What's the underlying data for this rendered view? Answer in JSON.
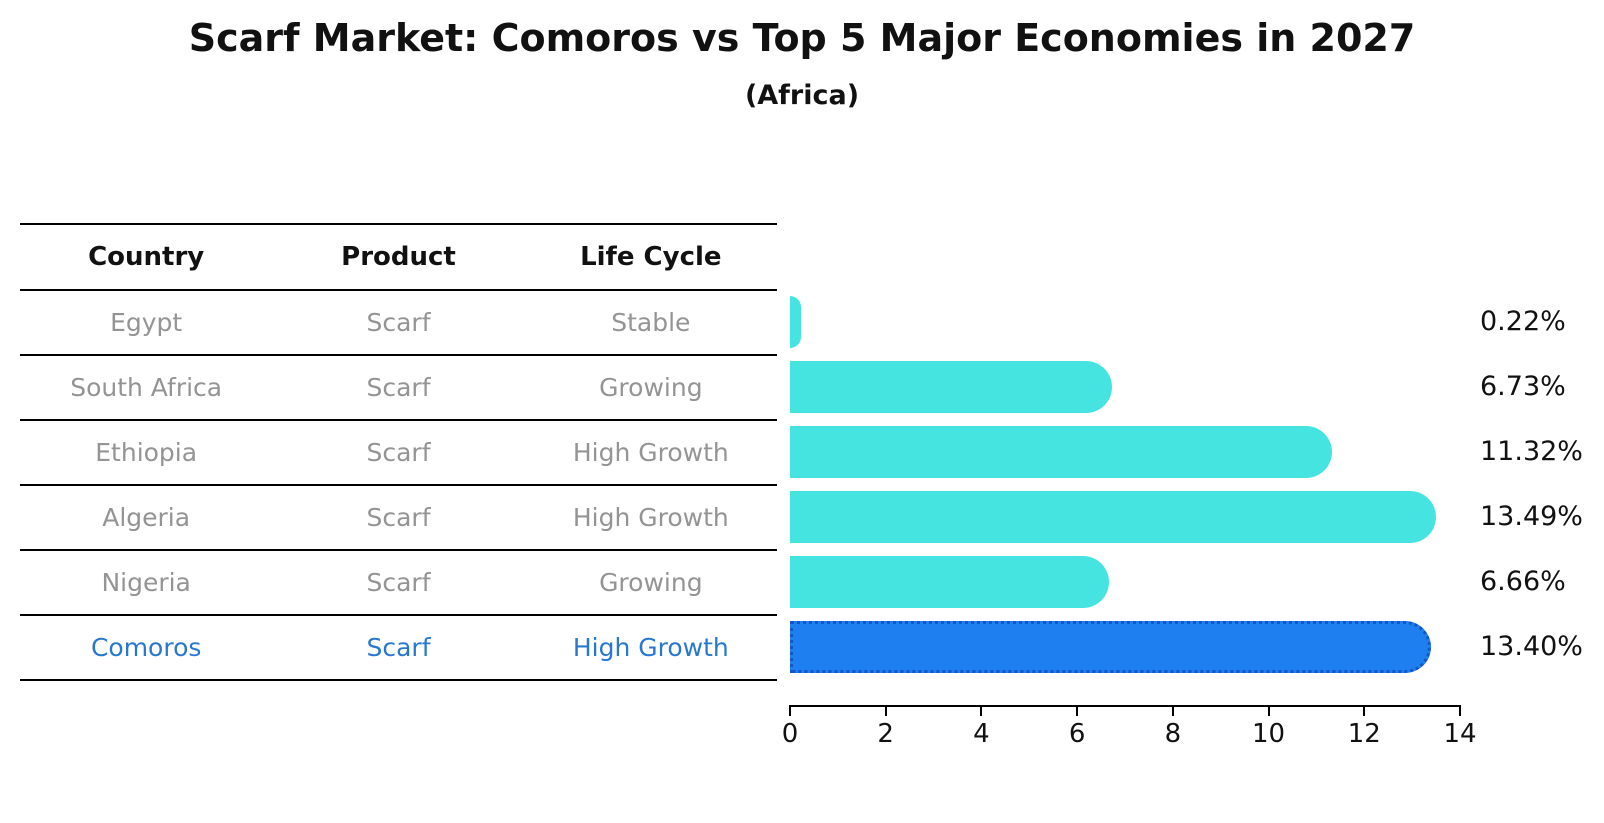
{
  "title": "Scarf Market: Comoros vs Top 5 Major Economies in 2027",
  "subtitle": "(Africa)",
  "colors": {
    "bar": "#45E4E0",
    "highlight_bar": "#1E7FF0",
    "highlight_bar_border": "#1356C9",
    "table_text": "#949494",
    "highlight_text": "#2878CF",
    "heading_text": "#111111"
  },
  "table": {
    "columns": [
      "Country",
      "Product",
      "Life Cycle"
    ],
    "rows": [
      {
        "country": "Egypt",
        "product": "Scarf",
        "life_cycle": "Stable",
        "highlight": false
      },
      {
        "country": "South Africa",
        "product": "Scarf",
        "life_cycle": "Growing",
        "highlight": false
      },
      {
        "country": "Ethiopia",
        "product": "Scarf",
        "life_cycle": "High Growth",
        "highlight": false
      },
      {
        "country": "Algeria",
        "product": "Scarf",
        "life_cycle": "High Growth",
        "highlight": false
      },
      {
        "country": "Nigeria",
        "product": "Scarf",
        "life_cycle": "Growing",
        "highlight": false
      },
      {
        "country": "Comoros",
        "product": "Scarf",
        "life_cycle": "High Growth",
        "highlight": true
      }
    ]
  },
  "chart_data": {
    "type": "bar",
    "orientation": "horizontal",
    "title": "Scarf Market: Comoros vs Top 5 Major Economies in 2027 (Africa)",
    "xlabel": "",
    "ylabel": "",
    "categories": [
      "Egypt",
      "South Africa",
      "Ethiopia",
      "Algeria",
      "Nigeria",
      "Comoros"
    ],
    "values": [
      0.22,
      6.73,
      11.32,
      13.49,
      6.66,
      13.4
    ],
    "value_labels": [
      "0.22%",
      "6.73%",
      "11.32%",
      "13.49%",
      "6.66%",
      "13.40%"
    ],
    "highlight_index": 5,
    "x_ticks": [
      0,
      2,
      4,
      6,
      8,
      10,
      12,
      14
    ],
    "xlim": [
      0,
      14
    ],
    "grid": false,
    "legend": "none"
  }
}
